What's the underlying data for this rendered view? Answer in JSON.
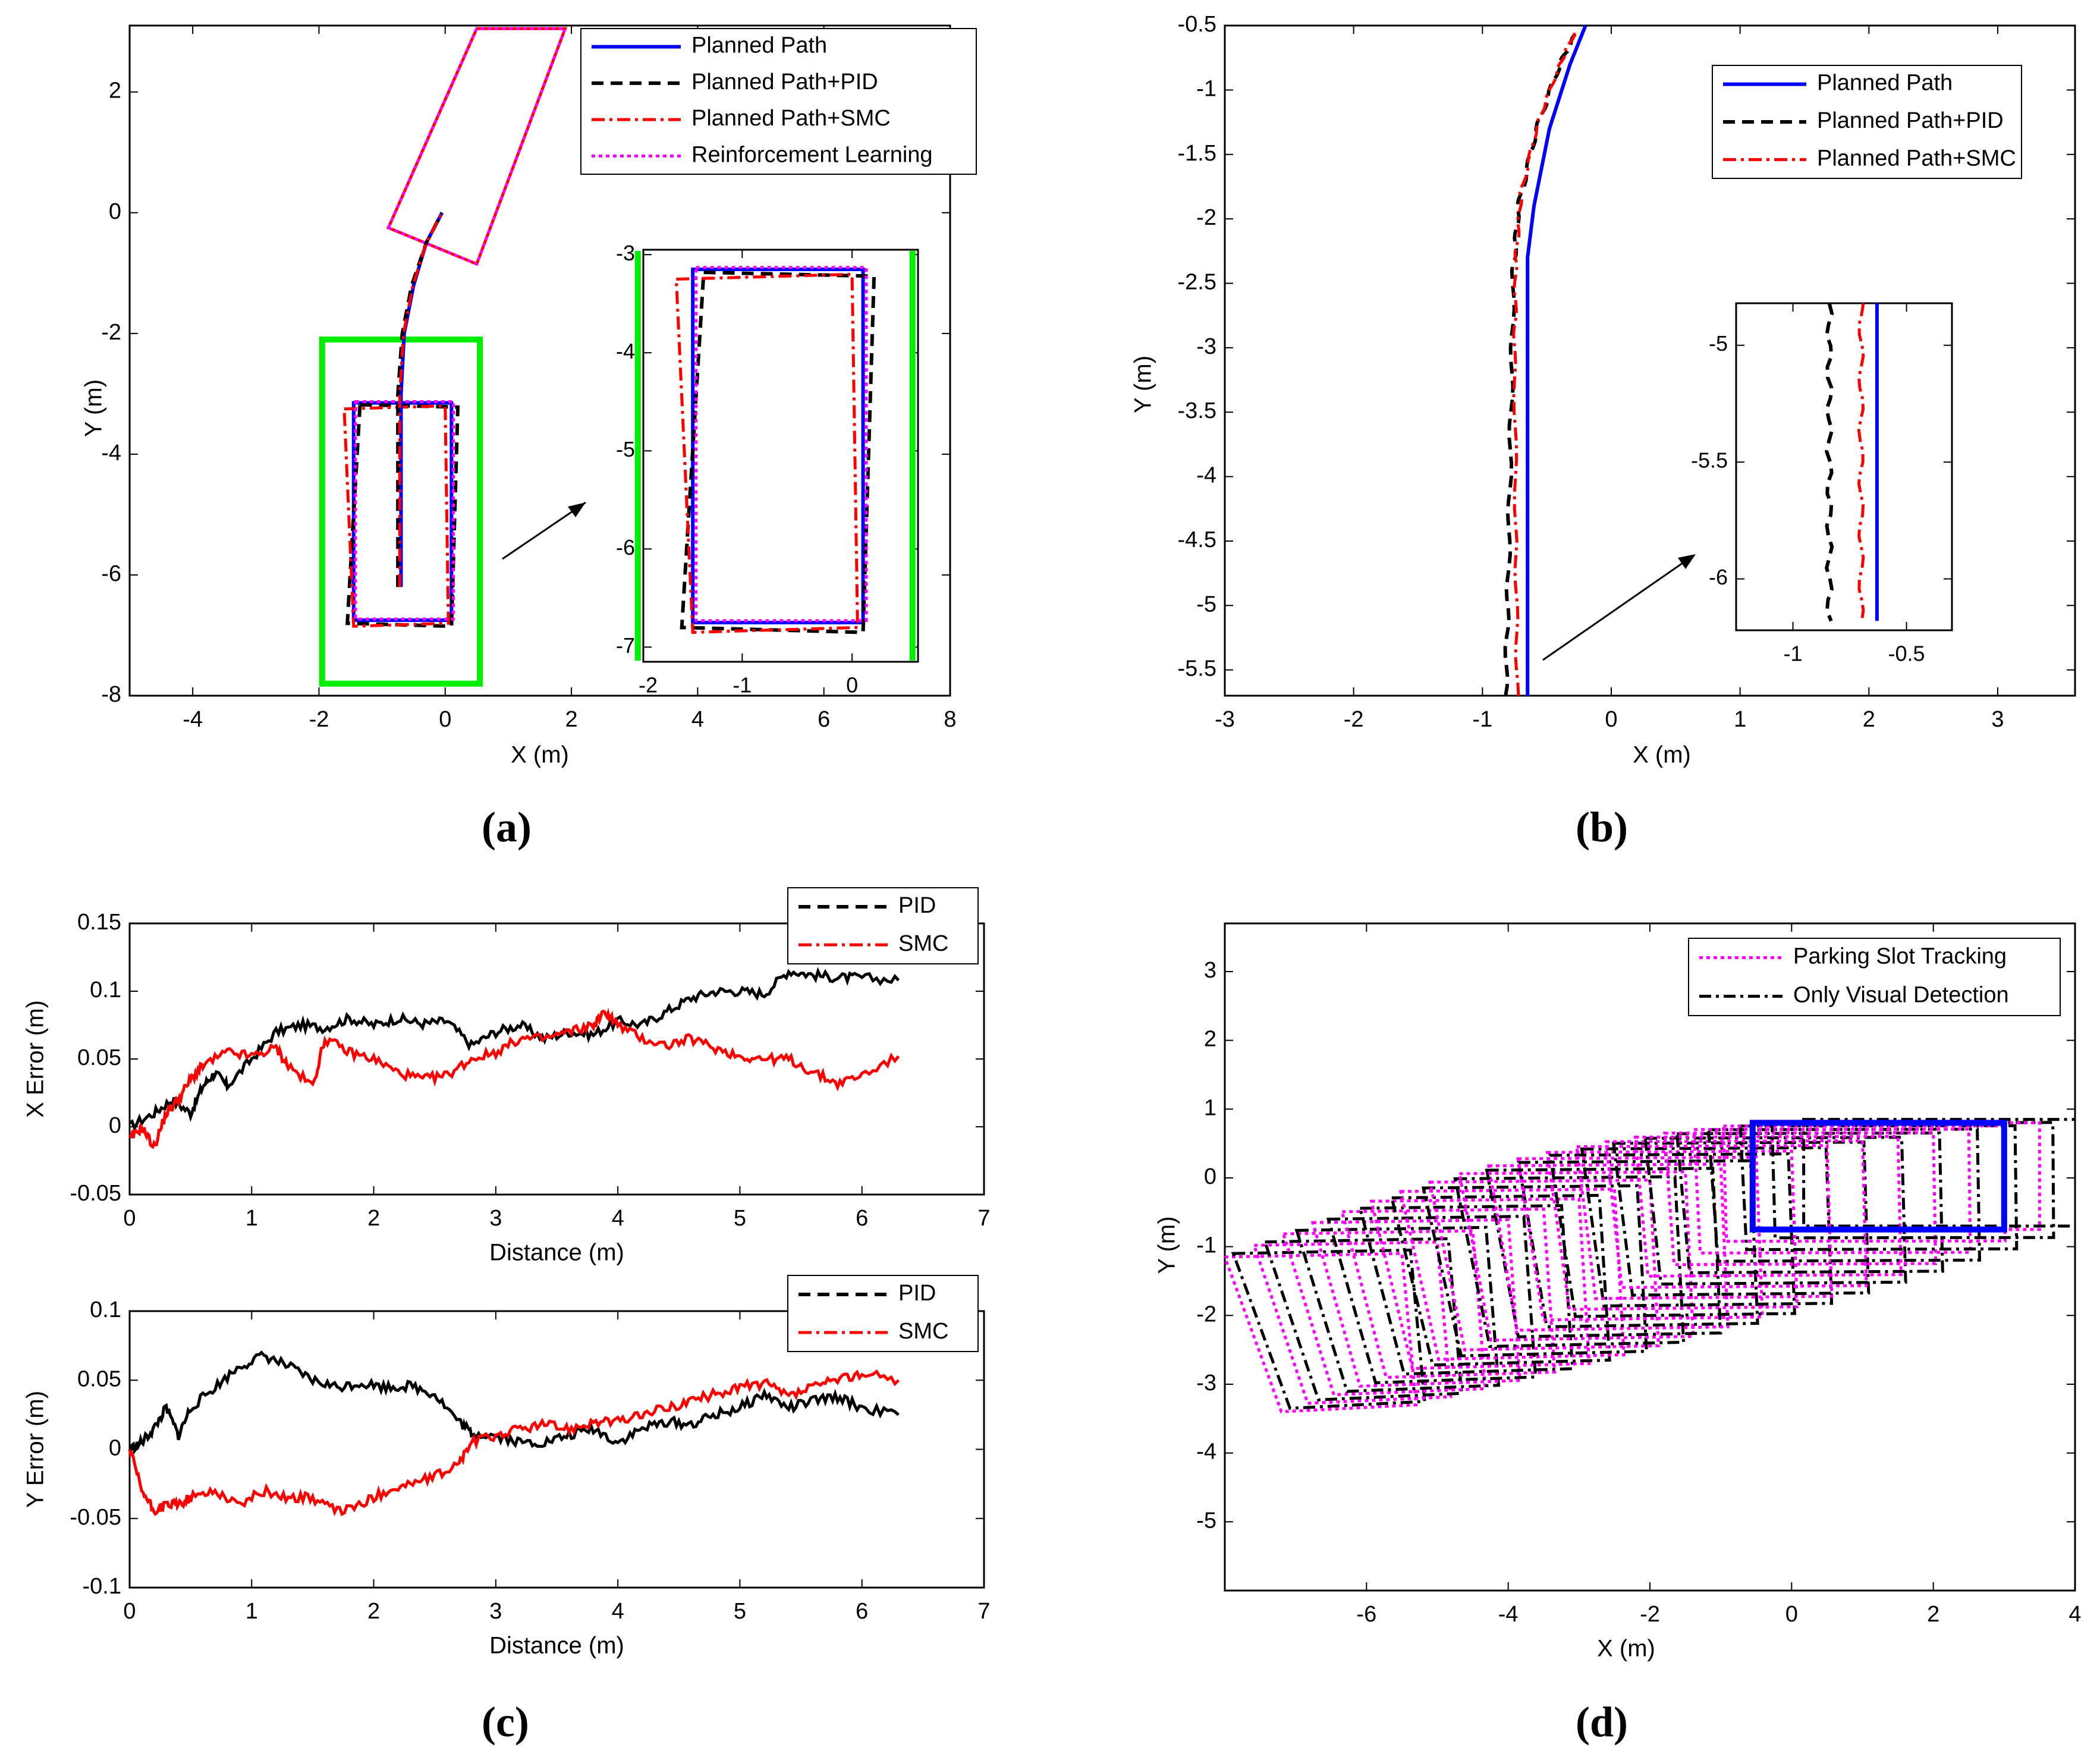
{
  "figure": {
    "captions": [
      "(a)",
      "(b)",
      "(c)",
      "(d)"
    ]
  },
  "colors": {
    "planned": "#0000ff",
    "pid": "#000000",
    "smc": "#ff0000",
    "rl": "#ff00ff",
    "slot": "#00ee00"
  },
  "chart_data": [
    {
      "id": "a",
      "type": "line",
      "xlabel": "X (m)",
      "ylabel": "Y (m)",
      "xlim": [
        -5,
        8
      ],
      "ylim": [
        -8,
        3.1
      ],
      "xticks": [
        -4,
        -2,
        0,
        2,
        4,
        6,
        8
      ],
      "yticks": [
        -8,
        -6,
        -4,
        -2,
        0,
        2
      ],
      "legend": [
        "Planned Path",
        "Planned Path+PID",
        "Planned Path+SMC",
        "Reinforcement Learning"
      ],
      "legend_position": "top-right",
      "inset": {
        "xlim": [
          -1.9,
          0.6
        ],
        "ylim": [
          -7.15,
          -2.95
        ],
        "xticks": [
          -1,
          0
        ],
        "xticklabels": [
          "-1",
          "0"
        ],
        "yticks": [
          -7,
          -6,
          -5,
          -4,
          -3
        ],
        "extra_xtick_label": "-2"
      },
      "series": {
        "planned_path": [
          [
            -0.7,
            -6.2
          ],
          [
            -0.7,
            -3.0
          ],
          [
            -0.65,
            -2.0
          ],
          [
            -0.5,
            -1.2
          ],
          [
            -0.3,
            -0.5
          ],
          [
            -0.05,
            0
          ]
        ],
        "pid_path": [
          [
            -0.75,
            -6.2
          ],
          [
            -0.75,
            -3.0
          ],
          [
            -0.68,
            -2.0
          ],
          [
            -0.53,
            -1.2
          ],
          [
            -0.3,
            -0.5
          ],
          [
            -0.05,
            0
          ]
        ],
        "smc_path": [
          [
            -0.72,
            -6.2
          ],
          [
            -0.72,
            -3.0
          ],
          [
            -0.66,
            -2.0
          ],
          [
            -0.51,
            -1.2
          ],
          [
            -0.3,
            -0.5
          ],
          [
            -0.05,
            0
          ]
        ],
        "planned_box": [
          [
            -1.45,
            -3.15
          ],
          [
            0.1,
            -3.15
          ],
          [
            0.1,
            -6.75
          ],
          [
            -1.45,
            -6.75
          ]
        ],
        "pid_box": [
          [
            -1.35,
            -3.18
          ],
          [
            0.2,
            -3.22
          ],
          [
            0.1,
            -6.85
          ],
          [
            -1.55,
            -6.8
          ]
        ],
        "smc_box": [
          [
            -1.6,
            -3.25
          ],
          [
            0.0,
            -3.2
          ],
          [
            0.05,
            -6.8
          ],
          [
            -1.45,
            -6.85
          ]
        ],
        "rl_box": [
          [
            -1.42,
            -3.13
          ],
          [
            0.13,
            -3.13
          ],
          [
            0.13,
            -6.73
          ],
          [
            -1.42,
            -6.73
          ]
        ],
        "vehicle_box": [
          [
            -0.9,
            -0.25
          ],
          [
            0.5,
            -0.85
          ],
          [
            1.9,
            3.05
          ],
          [
            0.5,
            3.05
          ]
        ],
        "slot_lines_x": [
          -1.95,
          0.55
        ],
        "slot_rect": [
          [
            -1.95,
            -2.1
          ],
          [
            0.55,
            -2.1
          ],
          [
            0.55,
            -7.8
          ],
          [
            -1.95,
            -7.8
          ]
        ]
      }
    },
    {
      "id": "b",
      "type": "line",
      "xlabel": "X (m)",
      "ylabel": "Y (m)",
      "xlim": [
        -3,
        3.6
      ],
      "ylim": [
        -5.7,
        -0.5
      ],
      "xticks": [
        -3,
        -2,
        -1,
        0,
        1,
        2,
        3
      ],
      "yticks": [
        -5.5,
        -5,
        -4.5,
        -4,
        -3.5,
        -3,
        -2.5,
        -2,
        -1.5,
        -1,
        -0.5
      ],
      "legend": [
        "Planned Path",
        "Planned Path+PID",
        "Planned Path+SMC"
      ],
      "legend_position": "top-right",
      "inset": {
        "xlim": [
          -1.25,
          -0.3
        ],
        "ylim": [
          -6.22,
          -4.82
        ],
        "xticks": [
          -1,
          -0.5
        ],
        "yticks": [
          -6,
          -5.5,
          -5
        ]
      },
      "series": {
        "planned": [
          [
            -0.65,
            -5.7
          ],
          [
            -0.65,
            -2.3
          ],
          [
            -0.6,
            -1.9
          ],
          [
            -0.48,
            -1.3
          ],
          [
            -0.32,
            -0.8
          ],
          [
            -0.2,
            -0.5
          ]
        ],
        "pid": [
          [
            -0.82,
            -5.7
          ],
          [
            -0.8,
            -4.8
          ],
          [
            -0.78,
            -3.6
          ],
          [
            -0.76,
            -2.4
          ],
          [
            -0.72,
            -1.9
          ],
          [
            -0.58,
            -1.3
          ],
          [
            -0.4,
            -0.8
          ],
          [
            -0.24,
            -0.5
          ]
        ],
        "smc": [
          [
            -0.73,
            -5.7
          ],
          [
            -0.74,
            -4.5
          ],
          [
            -0.75,
            -3.0
          ],
          [
            -0.74,
            -2.3
          ],
          [
            -0.7,
            -1.8
          ],
          [
            -0.57,
            -1.25
          ],
          [
            -0.4,
            -0.8
          ],
          [
            -0.26,
            -0.5
          ]
        ]
      }
    },
    {
      "id": "c1",
      "type": "line",
      "xlabel": "Distance (m)",
      "ylabel": "X Error (m)",
      "xlim": [
        0,
        7
      ],
      "ylim": [
        -0.05,
        0.15
      ],
      "xticks": [
        0,
        1,
        2,
        3,
        4,
        5,
        6,
        7
      ],
      "yticks": [
        -0.05,
        0,
        0.05,
        0.1,
        0.15
      ],
      "yticklabels": [
        "-0.05",
        "0",
        "0.05",
        "0.1",
        "0.15"
      ],
      "legend": [
        "PID",
        "SMC"
      ],
      "legend_position": "top-right",
      "series": [
        {
          "name": "PID",
          "x": [
            0,
            0.2,
            0.35,
            0.5,
            0.6,
            0.7,
            0.8,
            1.0,
            1.2,
            1.4,
            1.6,
            1.8,
            2.0,
            2.2,
            2.4,
            2.6,
            2.8,
            3.0,
            3.2,
            3.4,
            3.6,
            3.8,
            4.0,
            4.2,
            4.4,
            4.6,
            4.8,
            5.0,
            5.2,
            5.4,
            5.6,
            5.8,
            6.0,
            6.3
          ],
          "y": [
            0.0,
            0.01,
            0.02,
            0.01,
            0.03,
            0.04,
            0.03,
            0.05,
            0.07,
            0.075,
            0.073,
            0.08,
            0.075,
            0.08,
            0.076,
            0.078,
            0.06,
            0.07,
            0.075,
            0.065,
            0.07,
            0.068,
            0.078,
            0.075,
            0.085,
            0.095,
            0.1,
            0.1,
            0.098,
            0.115,
            0.112,
            0.11,
            0.11,
            0.108
          ]
        },
        {
          "name": "SMC",
          "x": [
            0,
            0.1,
            0.2,
            0.3,
            0.4,
            0.5,
            0.6,
            0.8,
            1.0,
            1.2,
            1.3,
            1.5,
            1.6,
            1.8,
            2.0,
            2.2,
            2.4,
            2.6,
            2.8,
            3.0,
            3.2,
            3.4,
            3.6,
            3.8,
            3.9,
            4.0,
            4.2,
            4.4,
            4.6,
            4.8,
            5.0,
            5.2,
            5.4,
            5.6,
            5.8,
            6.0,
            6.3
          ],
          "y": [
            -0.01,
            0.0,
            -0.015,
            0.01,
            0.02,
            0.035,
            0.045,
            0.055,
            0.052,
            0.058,
            0.045,
            0.03,
            0.065,
            0.055,
            0.05,
            0.04,
            0.035,
            0.038,
            0.05,
            0.055,
            0.065,
            0.065,
            0.07,
            0.075,
            0.085,
            0.075,
            0.065,
            0.06,
            0.065,
            0.058,
            0.052,
            0.05,
            0.05,
            0.04,
            0.032,
            0.038,
            0.052
          ]
        }
      ]
    },
    {
      "id": "c2",
      "type": "line",
      "xlabel": "Distance (m)",
      "ylabel": "Y Error (m)",
      "xlim": [
        0,
        7
      ],
      "ylim": [
        -0.1,
        0.1
      ],
      "xticks": [
        0,
        1,
        2,
        3,
        4,
        5,
        6,
        7
      ],
      "yticks": [
        -0.1,
        -0.05,
        0,
        0.05,
        0.1
      ],
      "yticklabels": [
        "-0.1",
        "-0.05",
        "0",
        "0.05",
        "0.1"
      ],
      "legend": [
        "PID",
        "SMC"
      ],
      "legend_position": "top-right",
      "series": [
        {
          "name": "PID",
          "x": [
            0,
            0.1,
            0.2,
            0.3,
            0.4,
            0.5,
            0.7,
            0.9,
            1.1,
            1.3,
            1.5,
            1.7,
            1.9,
            2.1,
            2.3,
            2.5,
            2.7,
            2.8,
            3.0,
            3.2,
            3.4,
            3.6,
            3.8,
            4.0,
            4.2,
            4.4,
            4.6,
            4.8,
            5.0,
            5.2,
            5.4,
            5.6,
            5.8,
            6.0,
            6.3
          ],
          "y": [
            0.0,
            0.005,
            0.015,
            0.03,
            0.01,
            0.03,
            0.045,
            0.06,
            0.068,
            0.06,
            0.05,
            0.045,
            0.048,
            0.045,
            0.046,
            0.04,
            0.02,
            0.012,
            0.01,
            0.005,
            0.005,
            0.01,
            0.015,
            0.005,
            0.015,
            0.02,
            0.018,
            0.025,
            0.03,
            0.04,
            0.03,
            0.035,
            0.038,
            0.03,
            0.025
          ]
        },
        {
          "name": "SMC",
          "x": [
            0,
            0.1,
            0.2,
            0.3,
            0.4,
            0.5,
            0.7,
            0.9,
            1.1,
            1.3,
            1.5,
            1.7,
            1.9,
            2.1,
            2.3,
            2.5,
            2.7,
            2.8,
            3.0,
            3.2,
            3.4,
            3.6,
            3.8,
            4.0,
            4.2,
            4.4,
            4.6,
            4.8,
            5.0,
            5.2,
            5.4,
            5.6,
            5.8,
            6.0,
            6.3
          ],
          "y": [
            0.0,
            -0.03,
            -0.045,
            -0.04,
            -0.04,
            -0.035,
            -0.03,
            -0.04,
            -0.03,
            -0.035,
            -0.035,
            -0.045,
            -0.04,
            -0.03,
            -0.025,
            -0.02,
            -0.01,
            0.005,
            0.01,
            0.015,
            0.018,
            0.015,
            0.02,
            0.02,
            0.025,
            0.03,
            0.035,
            0.04,
            0.045,
            0.048,
            0.038,
            0.045,
            0.05,
            0.055,
            0.05
          ]
        }
      ]
    },
    {
      "id": "d",
      "type": "line",
      "xlabel": "X (m)",
      "ylabel": "Y (m)",
      "xlim": [
        -8,
        4
      ],
      "ylim": [
        -6,
        3.7
      ],
      "xticks": [
        -6,
        -4,
        -2,
        0,
        2,
        4
      ],
      "yticks": [
        -5,
        -4,
        -3,
        -2,
        -1,
        0,
        1,
        2,
        3
      ],
      "legend": [
        "Parking Slot Tracking",
        "Only Visual Detection"
      ],
      "legend_position": "top-right",
      "series": {
        "target_slot": [
          [
            -0.55,
            0.8
          ],
          [
            3.0,
            0.8
          ],
          [
            3.0,
            -0.75
          ],
          [
            -0.55,
            -0.75
          ]
        ],
        "start_slot": [
          [
            -8.0,
            -1.15
          ],
          [
            -5.5,
            -1.1
          ],
          [
            -5.3,
            -3.3
          ],
          [
            -7.2,
            -3.4
          ]
        ],
        "sweep_steps": 18
      }
    }
  ]
}
